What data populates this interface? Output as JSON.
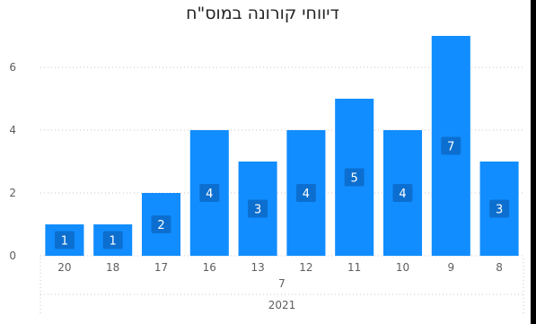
{
  "chart_data": {
    "type": "bar",
    "title": "דיווחי קורונה במוס\"ח",
    "categories": [
      "20",
      "18",
      "17",
      "16",
      "13",
      "12",
      "11",
      "10",
      "9",
      "8"
    ],
    "values": [
      1,
      1,
      2,
      4,
      3,
      4,
      5,
      4,
      7,
      3
    ],
    "data_labels": [
      "1",
      "1",
      "2",
      "4",
      "3",
      "4",
      "5",
      "4",
      "7",
      "3"
    ],
    "yticks": [
      "0",
      "2",
      "4",
      "6"
    ],
    "ylim": [
      0,
      7.6
    ],
    "x_group_month": "7",
    "x_group_year": "2021",
    "grid": true,
    "bar_color": "#118DFF",
    "label_bg_color": "#0C6FD0"
  }
}
